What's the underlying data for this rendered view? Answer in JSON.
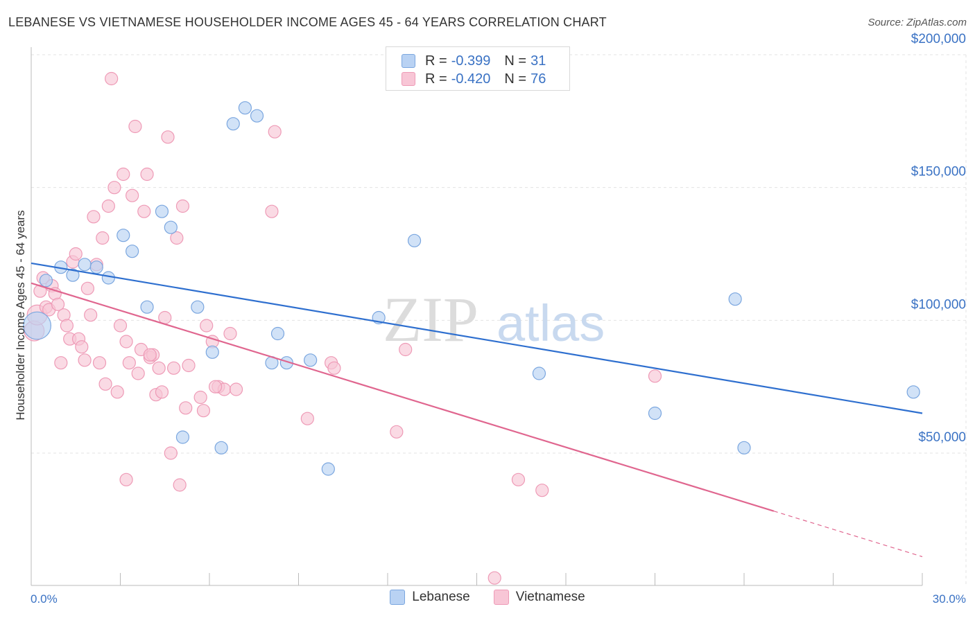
{
  "title": "LEBANESE VS VIETNAMESE HOUSEHOLDER INCOME AGES 45 - 64 YEARS CORRELATION CHART",
  "source": "Source: ZipAtlas.com",
  "watermark": {
    "zip": "ZIP",
    "atlas": "atlas"
  },
  "colors": {
    "lebanese_fill": "#b9d2f3",
    "lebanese_stroke": "#7aa6df",
    "lebanese_line": "#2e6fcf",
    "vietnamese_fill": "#f8c6d6",
    "vietnamese_stroke": "#ee9ab6",
    "vietnamese_line": "#e0668f",
    "axis_text": "#3a72c4",
    "grid": "#e3e3e3"
  },
  "legend": {
    "rows": [
      {
        "r_label": "R =",
        "r_value": "-0.399",
        "n_label": "N =",
        "n_value": "31"
      },
      {
        "r_label": "R =",
        "r_value": "-0.420",
        "n_label": "N =",
        "n_value": "76"
      }
    ]
  },
  "bottom_legend": [
    "Lebanese",
    "Vietnamese"
  ],
  "chart_data": {
    "type": "scatter",
    "title": "LEBANESE VS VIETNAMESE HOUSEHOLDER INCOME AGES 45 - 64 YEARS CORRELATION CHART",
    "xlabel": "",
    "ylabel": "Householder Income Ages 45 - 64 years",
    "xlim": [
      0,
      30
    ],
    "ylim": [
      0,
      205000
    ],
    "x_tick_labels": [
      "0.0%",
      "30.0%"
    ],
    "y_ticks": [
      {
        "value": 50000,
        "label": "$50,000"
      },
      {
        "value": 100000,
        "label": "$100,000"
      },
      {
        "value": 150000,
        "label": "$150,000"
      },
      {
        "value": 200000,
        "label": "$200,000"
      }
    ],
    "grid": true,
    "legend_position": "top-center",
    "series": [
      {
        "name": "Lebanese",
        "trend": {
          "x": [
            0,
            30
          ],
          "y": [
            121500,
            65000
          ],
          "dashed_from": null
        },
        "points": [
          [
            0.2,
            98000,
            2.2
          ],
          [
            0.5,
            115000,
            1
          ],
          [
            1.0,
            120000,
            1
          ],
          [
            1.4,
            117000,
            1
          ],
          [
            1.8,
            121000,
            1
          ],
          [
            2.2,
            120000,
            1
          ],
          [
            2.6,
            116000,
            1
          ],
          [
            3.1,
            132000,
            1
          ],
          [
            3.4,
            126000,
            1
          ],
          [
            3.9,
            105000,
            1
          ],
          [
            4.4,
            141000,
            1
          ],
          [
            4.7,
            135000,
            1
          ],
          [
            5.1,
            56000,
            1
          ],
          [
            5.6,
            105000,
            1
          ],
          [
            6.1,
            88000,
            1
          ],
          [
            6.4,
            52000,
            1
          ],
          [
            6.8,
            174000,
            1
          ],
          [
            7.2,
            180000,
            1
          ],
          [
            7.6,
            177000,
            1
          ],
          [
            8.1,
            84000,
            1
          ],
          [
            8.3,
            95000,
            1
          ],
          [
            8.6,
            84000,
            1
          ],
          [
            9.4,
            85000,
            1
          ],
          [
            10.0,
            44000,
            1
          ],
          [
            11.7,
            101000,
            1
          ],
          [
            12.9,
            130000,
            1
          ],
          [
            17.1,
            80000,
            1
          ],
          [
            21.0,
            65000,
            1
          ],
          [
            23.7,
            108000,
            1
          ],
          [
            24.0,
            52000,
            1
          ],
          [
            29.7,
            73000,
            1
          ]
        ]
      },
      {
        "name": "Vietnamese",
        "trend": {
          "x": [
            0,
            30
          ],
          "y": [
            114000,
            11000
          ],
          "dashed_from": 25.0
        },
        "points": [
          [
            0.1,
            96000,
            1.6
          ],
          [
            0.2,
            102000,
            1.6
          ],
          [
            0.3,
            111000,
            1
          ],
          [
            0.4,
            116000,
            1
          ],
          [
            0.5,
            105000,
            1
          ],
          [
            0.6,
            104000,
            1
          ],
          [
            0.7,
            113000,
            1
          ],
          [
            0.8,
            110000,
            1
          ],
          [
            0.9,
            106000,
            1
          ],
          [
            1.0,
            84000,
            1
          ],
          [
            1.1,
            102000,
            1
          ],
          [
            1.2,
            98000,
            1
          ],
          [
            1.3,
            93000,
            1
          ],
          [
            1.4,
            122000,
            1
          ],
          [
            1.5,
            125000,
            1
          ],
          [
            1.6,
            93000,
            1
          ],
          [
            1.7,
            90000,
            1
          ],
          [
            1.8,
            85000,
            1
          ],
          [
            1.9,
            112000,
            1
          ],
          [
            2.0,
            102000,
            1
          ],
          [
            2.1,
            139000,
            1
          ],
          [
            2.2,
            121000,
            1
          ],
          [
            2.3,
            84000,
            1
          ],
          [
            2.4,
            131000,
            1
          ],
          [
            2.5,
            76000,
            1
          ],
          [
            2.6,
            143000,
            1
          ],
          [
            2.7,
            191000,
            1
          ],
          [
            2.8,
            150000,
            1
          ],
          [
            2.9,
            73000,
            1
          ],
          [
            3.0,
            98000,
            1
          ],
          [
            3.1,
            155000,
            1
          ],
          [
            3.2,
            92000,
            1
          ],
          [
            3.3,
            84000,
            1
          ],
          [
            3.4,
            147000,
            1
          ],
          [
            3.5,
            173000,
            1
          ],
          [
            3.6,
            80000,
            1
          ],
          [
            3.7,
            89000,
            1
          ],
          [
            3.8,
            141000,
            1
          ],
          [
            3.9,
            155000,
            1
          ],
          [
            4.0,
            86000,
            1
          ],
          [
            4.1,
            87000,
            1
          ],
          [
            4.2,
            72000,
            1
          ],
          [
            4.3,
            82000,
            1
          ],
          [
            4.4,
            73000,
            1
          ],
          [
            4.5,
            101000,
            1
          ],
          [
            4.6,
            169000,
            1
          ],
          [
            4.7,
            50000,
            1
          ],
          [
            4.8,
            82000,
            1
          ],
          [
            4.9,
            131000,
            1
          ],
          [
            5.0,
            38000,
            1
          ],
          [
            5.1,
            143000,
            1
          ],
          [
            5.2,
            67000,
            1
          ],
          [
            5.3,
            83000,
            1
          ],
          [
            5.7,
            71000,
            1
          ],
          [
            5.8,
            66000,
            1
          ],
          [
            5.9,
            98000,
            1
          ],
          [
            6.1,
            92000,
            1
          ],
          [
            6.3,
            75000,
            1
          ],
          [
            6.5,
            74000,
            1
          ],
          [
            6.7,
            95000,
            1
          ],
          [
            6.9,
            74000,
            1
          ],
          [
            8.1,
            141000,
            1
          ],
          [
            8.2,
            171000,
            1
          ],
          [
            9.3,
            63000,
            1
          ],
          [
            10.1,
            84000,
            1
          ],
          [
            10.2,
            82000,
            1
          ],
          [
            12.3,
            58000,
            1
          ],
          [
            12.6,
            89000,
            1
          ],
          [
            15.6,
            3000,
            1
          ],
          [
            16.4,
            40000,
            1
          ],
          [
            17.2,
            36000,
            1
          ],
          [
            21.0,
            79000,
            1
          ],
          [
            3.2,
            40000,
            1
          ],
          [
            2.9,
            40000,
            0.0
          ],
          [
            6.2,
            75000,
            1
          ],
          [
            4.0,
            87000,
            1
          ]
        ]
      }
    ]
  }
}
